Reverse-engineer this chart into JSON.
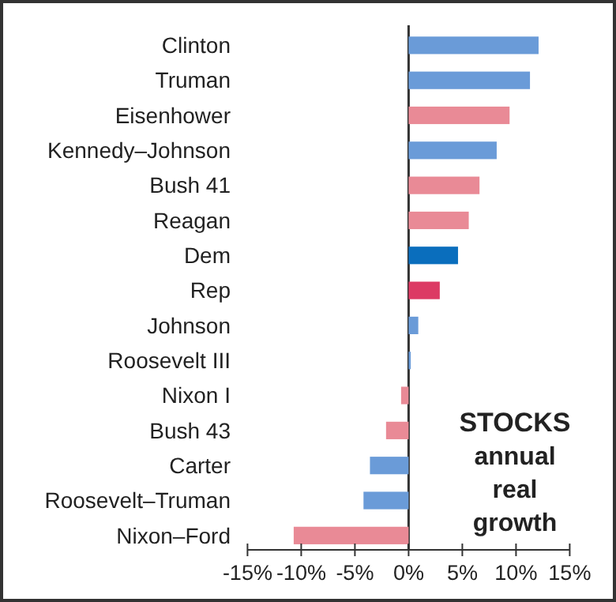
{
  "chart_data": {
    "type": "bar",
    "orientation": "horizontal",
    "categories": [
      "Clinton",
      "Truman",
      "Eisenhower",
      "Kennedy–Johnson",
      "Bush 41",
      "Reagan",
      "Dem",
      "Rep",
      "Johnson",
      "Roosevelt III",
      "Nixon I",
      "Bush 43",
      "Carter",
      "Roosevelt–Truman",
      "Nixon–Ford"
    ],
    "values": [
      12.1,
      11.3,
      9.4,
      8.2,
      6.6,
      5.6,
      4.6,
      2.9,
      0.9,
      0.2,
      -0.7,
      -2.1,
      -3.6,
      -4.2,
      -10.7
    ],
    "colors": [
      "#6a9bd8",
      "#6a9bd8",
      "#e98a96",
      "#6a9bd8",
      "#e98a96",
      "#e98a96",
      "#0a6ebd",
      "#dc3a64",
      "#6a9bd8",
      "#6a9bd8",
      "#e98a96",
      "#e98a96",
      "#6a9bd8",
      "#6a9bd8",
      "#e98a96"
    ],
    "xlim": [
      -15,
      15
    ],
    "xticks": [
      {
        "value": -15,
        "label": "-15%"
      },
      {
        "value": -10,
        "label": "-10%"
      },
      {
        "value": -5,
        "label": "-5%"
      },
      {
        "value": 0,
        "label": "0%"
      },
      {
        "value": 5,
        "label": "5%"
      },
      {
        "value": 10,
        "label": "10%"
      },
      {
        "value": 15,
        "label": "15%"
      }
    ],
    "annotations": [
      "STOCKS",
      "annual real growth"
    ]
  }
}
